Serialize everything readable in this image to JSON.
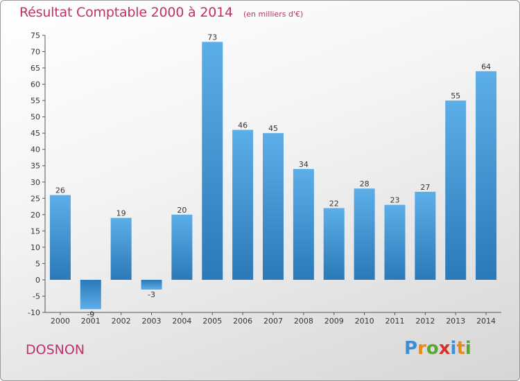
{
  "chart_data": {
    "type": "bar",
    "title": "Résultat Comptable 2000 à 2014",
    "subtitle": "(en milliers d'€)",
    "categories": [
      "2000",
      "2001",
      "2002",
      "2003",
      "2004",
      "2005",
      "2006",
      "2007",
      "2008",
      "2009",
      "2010",
      "2011",
      "2012",
      "2013",
      "2014"
    ],
    "values": [
      26,
      -9,
      19,
      -3,
      20,
      73,
      46,
      45,
      34,
      22,
      28,
      23,
      27,
      55,
      64
    ],
    "value_labels": [
      "26",
      "-9",
      "19",
      "-3",
      "20",
      "73",
      "46",
      "45",
      "34",
      "22",
      "28",
      "23",
      "27",
      "55",
      "64"
    ],
    "ylim": [
      -10,
      75
    ],
    "yticks": [
      -10,
      -5,
      0,
      5,
      10,
      15,
      20,
      25,
      30,
      35,
      40,
      45,
      50,
      55,
      60,
      65,
      70,
      75
    ],
    "grid": false,
    "bar_color": "#3a8fd6",
    "xlabel": "",
    "ylabel": ""
  },
  "footer": {
    "commune": "DOSNON",
    "logo_letters": [
      {
        "ch": "P",
        "color": "#3a8fd6"
      },
      {
        "ch": "r",
        "color": "#e88a1a"
      },
      {
        "ch": "o",
        "color": "#5aa832"
      },
      {
        "ch": "x",
        "color": "#d9302c"
      },
      {
        "ch": "i",
        "color": "#3a8fd6"
      },
      {
        "ch": "t",
        "color": "#e88a1a"
      },
      {
        "ch": "i",
        "color": "#5aa832"
      }
    ]
  }
}
